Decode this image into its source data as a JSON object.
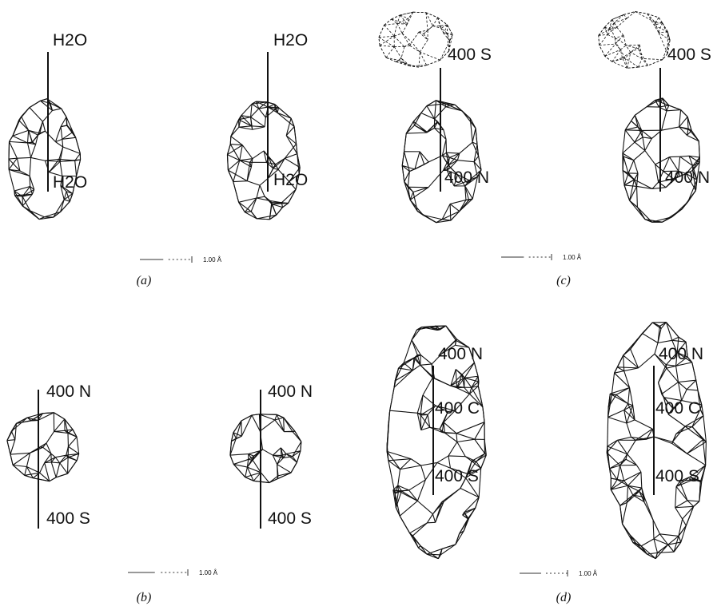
{
  "panels": [
    {
      "caption": "(a)",
      "scale_label": "1.00 Å",
      "views": [
        {
          "labels": [
            "H2O",
            "H2O"
          ]
        },
        {
          "labels": [
            "H2O",
            "H2O"
          ]
        }
      ]
    },
    {
      "caption": "(c)",
      "scale_label": "1.00 Å",
      "views": [
        {
          "labels": [
            "400 S",
            "400 N"
          ]
        },
        {
          "labels": [
            "400 S",
            "400 N"
          ]
        }
      ]
    },
    {
      "caption": "(b)",
      "scale_label": "1.00 Å",
      "views": [
        {
          "labels": [
            "400 N",
            "400 S"
          ]
        },
        {
          "labels": [
            "400 N",
            "400 S"
          ]
        }
      ]
    },
    {
      "caption": "(d)",
      "scale_label": "1.00 Å",
      "views": [
        {
          "labels": [
            "400 N",
            "400 C",
            "400 S"
          ]
        },
        {
          "labels": [
            "400 N",
            "400 C",
            "400 S"
          ]
        }
      ]
    }
  ]
}
